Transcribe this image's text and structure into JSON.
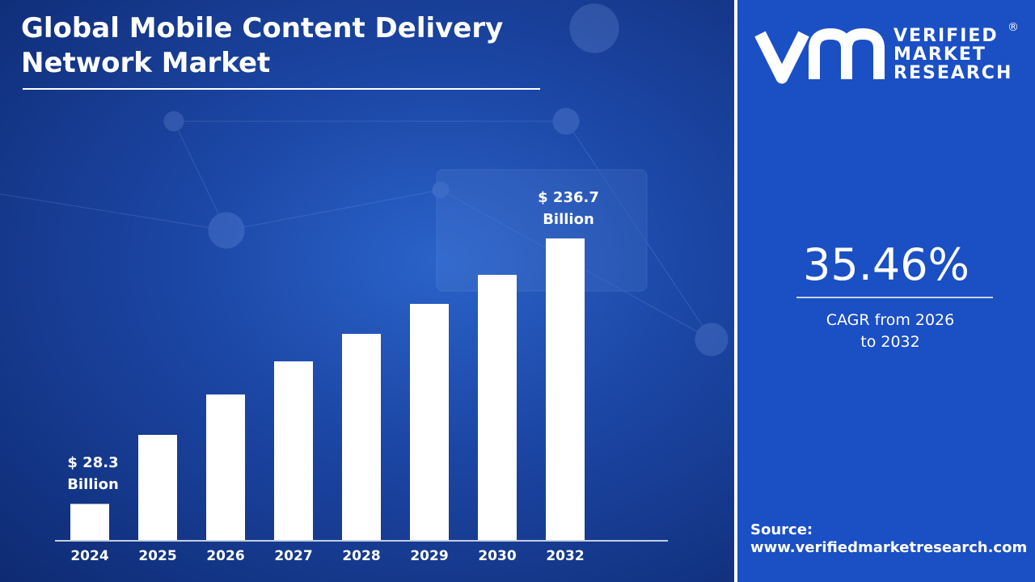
{
  "chart_data": {
    "type": "bar",
    "title": "Global Mobile Content Delivery Network Market",
    "categories": [
      "2024",
      "2025",
      "2026",
      "2027",
      "2028",
      "2029",
      "2030",
      "2032"
    ],
    "values": [
      28.3,
      82.5,
      114.2,
      140.2,
      161.8,
      185.3,
      208.1,
      236.7
    ],
    "value_labels": [
      "$ 28.3 Billion",
      null,
      null,
      null,
      null,
      null,
      null,
      "$ 236.7 Billion"
    ],
    "color": "#ffffff",
    "ylim": [
      0,
      250
    ]
  },
  "brand": {
    "lines": [
      "VERIFIED",
      "MARKET",
      "RESEARCH"
    ],
    "mark": "®"
  },
  "cagr": {
    "value": "35.46%",
    "label": "CAGR from 2026 to 2032"
  },
  "source": {
    "label": "Source:",
    "url": "www.verifiedmarketresearch.com"
  }
}
